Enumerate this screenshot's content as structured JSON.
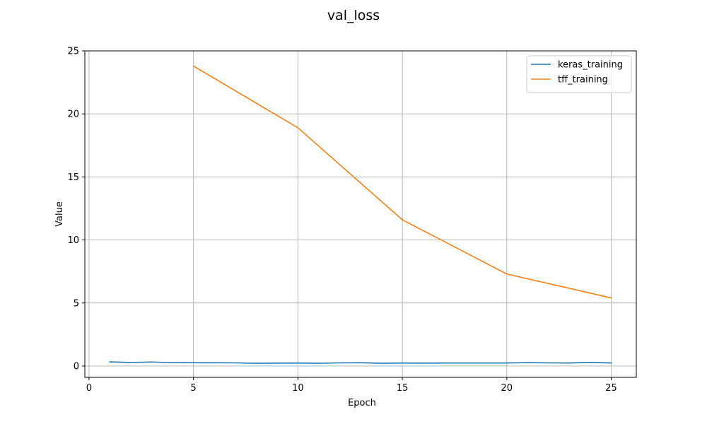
{
  "chart_data": {
    "type": "line",
    "title": "val_loss",
    "xlabel": "Epoch",
    "ylabel": "Value",
    "xlim": [
      -0.2,
      26.2
    ],
    "ylim": [
      -0.9,
      25
    ],
    "xticks": [
      0,
      5,
      10,
      15,
      20,
      25
    ],
    "yticks": [
      0,
      5,
      10,
      15,
      20,
      25
    ],
    "grid": true,
    "legend_position": "top-right",
    "series": [
      {
        "name": "keras_training",
        "color": "#1f77b4",
        "x": [
          1,
          2,
          3,
          4,
          5,
          6,
          7,
          8,
          9,
          10,
          11,
          12,
          13,
          14,
          15,
          16,
          17,
          18,
          19,
          20,
          21,
          22,
          23,
          24,
          25
        ],
        "y": [
          0.33,
          0.28,
          0.32,
          0.27,
          0.26,
          0.26,
          0.25,
          0.22,
          0.23,
          0.24,
          0.22,
          0.25,
          0.26,
          0.22,
          0.24,
          0.23,
          0.24,
          0.24,
          0.24,
          0.24,
          0.27,
          0.25,
          0.24,
          0.29,
          0.24
        ]
      },
      {
        "name": "tff_training",
        "color": "#ff7f0e",
        "x": [
          5,
          10,
          15,
          20,
          25
        ],
        "y": [
          23.8,
          18.9,
          11.6,
          7.3,
          5.4
        ]
      }
    ]
  }
}
